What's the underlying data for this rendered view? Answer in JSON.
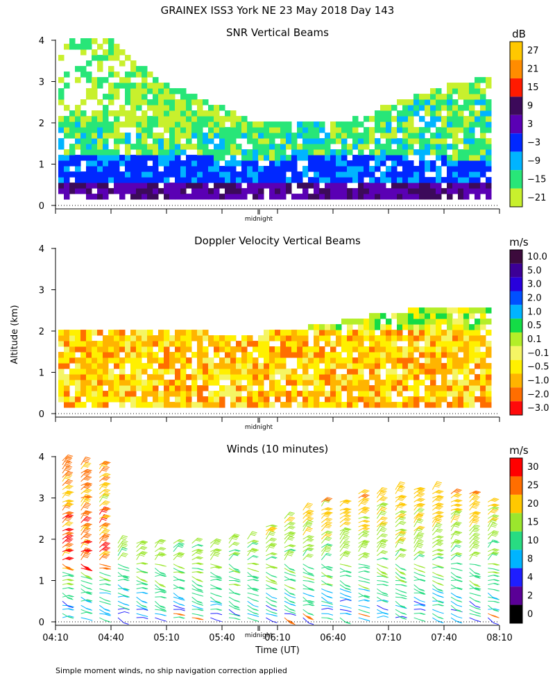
{
  "header": {
    "title": "GRAINEX ISS3 York NE  23 May 2018 Day 143"
  },
  "axes": {
    "ylabel": "Altitude (km)",
    "xlabel": "Time (UT)",
    "midnight_label": "midnight",
    "y_ticks": [
      "0",
      "1",
      "2",
      "3",
      "4"
    ],
    "x_ticks": [
      "04:10",
      "04:40",
      "05:10",
      "05:40",
      "06:10",
      "06:40",
      "07:10",
      "07:40",
      "08:10"
    ]
  },
  "footnote": "Simple moment winds, no ship navigation correction applied",
  "chart_data": [
    {
      "type": "heatmap",
      "title": "SNR Vertical Beams",
      "colorbar_unit": "dB",
      "colorbar_labels": [
        "27",
        "21",
        "15",
        "9",
        "3",
        "−3",
        "−9",
        "−15",
        "−21"
      ],
      "colorbar_colors": [
        "#ffc800",
        "#ff8c00",
        "#ff1a00",
        "#3c0a5a",
        "#5a00b4",
        "#0028ff",
        "#00b4ff",
        "#28e678",
        "#c8f02d"
      ],
      "xlim": [
        "04:10",
        "08:10"
      ],
      "ylim": [
        0,
        4.2
      ],
      "profile_top_km": [
        4.0,
        4.0,
        3.0,
        2.5,
        2.0,
        1.9,
        2.0,
        2.4,
        2.8,
        3.1
      ],
      "strong_layer_top_km": [
        1.2,
        1.2,
        1.15,
        1.1,
        1.05,
        1.1,
        1.1,
        1.15,
        1.1,
        1.0
      ],
      "mid_layer_top_km": [
        1.95,
        1.9,
        1.85,
        1.75,
        1.85,
        2.0,
        2.2,
        2.4,
        2.5,
        2.5
      ]
    },
    {
      "type": "heatmap",
      "title": "Doppler Velocity Vertical Beams",
      "colorbar_unit": "m/s",
      "colorbar_labels": [
        "10.0",
        "5.0",
        "3.0",
        "2.0",
        "1.0",
        "0.5",
        "0.1",
        "−0.1",
        "−0.5",
        "−1.0",
        "−2.0",
        "−3.0"
      ],
      "colorbar_colors": [
        "#3c0a3c",
        "#3c0096",
        "#2800dc",
        "#0050ff",
        "#00b4ff",
        "#14dc46",
        "#b4ee28",
        "#f5f564",
        "#fff000",
        "#ffb400",
        "#ff6e00",
        "#ff0a0a"
      ],
      "xlim": [
        "04:10",
        "08:10"
      ],
      "ylim": [
        0,
        4.2
      ],
      "profile_top_km": [
        1.95,
        1.95,
        1.95,
        1.9,
        1.85,
        2.0,
        2.2,
        2.4,
        2.5,
        2.5
      ]
    },
    {
      "type": "scatter",
      "title": "Winds (10 minutes)",
      "colorbar_unit": "m/s",
      "colorbar_labels": [
        "30",
        "25",
        "20",
        "15",
        "10",
        "8",
        "4",
        "2",
        "0"
      ],
      "colorbar_colors": [
        "#ff0000",
        "#ff6e00",
        "#ffc800",
        "#9be62d",
        "#28dc82",
        "#00b4ff",
        "#1e1eff",
        "#5a0096",
        "#000000"
      ],
      "xlim": [
        "04:10",
        "08:10"
      ],
      "ylim": [
        0,
        4.2
      ],
      "profile_times": [
        "04:10",
        "04:20",
        "04:30",
        "04:40",
        "04:50",
        "05:00",
        "05:10",
        "05:20",
        "05:30",
        "05:40",
        "05:50",
        "06:00",
        "06:10",
        "06:20",
        "06:30",
        "06:40",
        "06:50",
        "07:00",
        "07:10",
        "07:20",
        "07:30",
        "07:40",
        "07:50",
        "08:00"
      ],
      "profile_top_km": [
        4.0,
        3.9,
        3.9,
        2.0,
        2.0,
        2.0,
        2.0,
        2.0,
        2.0,
        2.1,
        2.1,
        2.4,
        2.6,
        2.8,
        3.0,
        3.0,
        3.2,
        3.2,
        3.3,
        3.3,
        3.3,
        3.2,
        3.2,
        3.0
      ]
    }
  ]
}
